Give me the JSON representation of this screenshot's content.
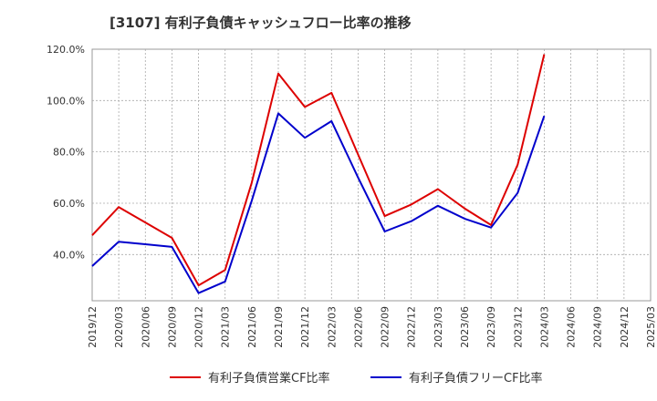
{
  "chart_data": {
    "type": "line",
    "title": "[3107]  有利子負債キャッシュフロー比率の推移",
    "xlabel": "",
    "ylabel": "",
    "ylim": [
      22,
      120
    ],
    "y_ticks": [
      "40.0%",
      "60.0%",
      "80.0%",
      "100.0%",
      "120.0%"
    ],
    "x": [
      "2019/12",
      "2020/03",
      "2020/06",
      "2020/09",
      "2020/12",
      "2021/03",
      "2021/06",
      "2021/09",
      "2021/12",
      "2022/03",
      "2022/06",
      "2022/09",
      "2022/12",
      "2023/03",
      "2023/06",
      "2023/09",
      "2023/12",
      "2024/03",
      "2024/06",
      "2024/09",
      "2024/12",
      "2025/03"
    ],
    "grid": true,
    "legend_position": "bottom",
    "series": [
      {
        "name": "有利子負債営業CF比率",
        "color": "#dd0000",
        "values": [
          47.5,
          58.5,
          52.5,
          46.5,
          28,
          34,
          68,
          110.5,
          97.5,
          103,
          79,
          55,
          59.5,
          65.5,
          58,
          51.5,
          75,
          118,
          null,
          null,
          null,
          null
        ]
      },
      {
        "name": "有利子負債フリーCF比率",
        "color": "#0000cc",
        "values": [
          35.5,
          45,
          44,
          43,
          25,
          29.5,
          61,
          95,
          85.5,
          92,
          70,
          49,
          53,
          59,
          54,
          50.5,
          64,
          94,
          null,
          null,
          null,
          null
        ]
      }
    ]
  }
}
